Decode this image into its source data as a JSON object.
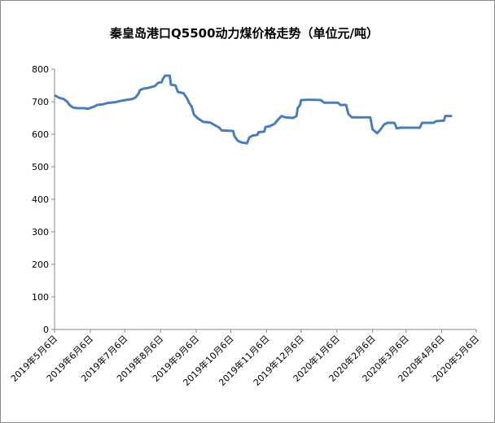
{
  "chart_data": {
    "type": "line",
    "title": "秦皇岛港口Q5500动力煤价格走势（单位元/吨）",
    "x": [
      "2019-05-06",
      "2019-05-10",
      "2019-05-14",
      "2019-05-17",
      "2019-05-19",
      "2019-05-22",
      "2019-05-26",
      "2019-06-01",
      "2019-06-04",
      "2019-06-07",
      "2019-06-10",
      "2019-06-12",
      "2019-06-17",
      "2019-06-21",
      "2019-06-27",
      "2019-07-02",
      "2019-07-08",
      "2019-07-12",
      "2019-07-15",
      "2019-07-18",
      "2019-07-19",
      "2019-07-22",
      "2019-07-26",
      "2019-07-29",
      "2019-08-01",
      "2019-08-04",
      "2019-08-07",
      "2019-08-08",
      "2019-08-10",
      "2019-08-14",
      "2019-08-15",
      "2019-08-19",
      "2019-08-21",
      "2019-08-26",
      "2019-08-29",
      "2019-08-31",
      "2019-09-02",
      "2019-09-04",
      "2019-09-07",
      "2019-09-09",
      "2019-09-12",
      "2019-09-18",
      "2019-09-22",
      "2019-09-26",
      "2019-09-28",
      "2019-10-08",
      "2019-10-09",
      "2019-10-12",
      "2019-10-15",
      "2019-10-20",
      "2019-10-22",
      "2019-10-25",
      "2019-10-29",
      "2019-10-30",
      "2019-11-04",
      "2019-11-05",
      "2019-11-09",
      "2019-11-13",
      "2019-11-16",
      "2019-11-19",
      "2019-11-22",
      "2019-11-29",
      "2019-12-02",
      "2019-12-03",
      "2019-12-05",
      "2019-12-06",
      "2019-12-13",
      "2019-12-23",
      "2019-12-26",
      "2020-01-07",
      "2020-01-09",
      "2020-01-14",
      "2020-01-16",
      "2020-01-19",
      "2020-02-04",
      "2020-02-06",
      "2020-02-10",
      "2020-02-13",
      "2020-02-16",
      "2020-02-19",
      "2020-02-25",
      "2020-02-27",
      "2020-03-01",
      "2020-03-18",
      "2020-03-20",
      "2020-03-30",
      "2020-04-01",
      "2020-04-08",
      "2020-04-09",
      "2020-04-15"
    ],
    "series": [
      {
        "color": "#4a7ebb",
        "values": [
          720,
          712,
          708,
          700,
          690,
          682,
          680,
          680,
          678,
          682,
          686,
          690,
          692,
          696,
          698,
          702,
          706,
          708,
          712,
          725,
          735,
          740,
          742,
          745,
          748,
          758,
          760,
          770,
          780,
          780,
          752,
          750,
          730,
          726,
          710,
          695,
          685,
          660,
          650,
          645,
          638,
          636,
          628,
          620,
          612,
          610,
          595,
          580,
          575,
          572,
          590,
          596,
          598,
          606,
          608,
          622,
          625,
          632,
          645,
          656,
          652,
          650,
          656,
          680,
          690,
          705,
          706,
          705,
          697,
          697,
          690,
          690,
          662,
          652,
          652,
          615,
          603,
          615,
          630,
          635,
          635,
          618,
          620,
          620,
          635,
          635,
          640,
          642,
          656,
          656
        ]
      }
    ],
    "xlim": [
      "2019-05-06",
      "2020-05-06"
    ],
    "xticks": [
      {
        "value": "2019-05-06",
        "label": "2019年5月6日"
      },
      {
        "value": "2019-06-06",
        "label": "2019年6月6日"
      },
      {
        "value": "2019-07-06",
        "label": "2019年7月6日"
      },
      {
        "value": "2019-08-06",
        "label": "2019年8月6日"
      },
      {
        "value": "2019-09-06",
        "label": "2019年9月6日"
      },
      {
        "value": "2019-10-06",
        "label": "2019年10月6日"
      },
      {
        "value": "2019-11-06",
        "label": "2019年11月6日"
      },
      {
        "value": "2019-12-06",
        "label": "2019年12月6日"
      },
      {
        "value": "2020-01-06",
        "label": "2020年1月6日"
      },
      {
        "value": "2020-02-06",
        "label": "2020年2月6日"
      },
      {
        "value": "2020-03-06",
        "label": "2020年3月6日"
      },
      {
        "value": "2020-04-06",
        "label": "2020年4月6日"
      },
      {
        "value": "2020-05-06",
        "label": "2020年5月6日"
      }
    ],
    "ylim": [
      0,
      800
    ],
    "yticks": [
      0,
      100,
      200,
      300,
      400,
      500,
      600,
      700,
      800
    ],
    "grid": false
  }
}
